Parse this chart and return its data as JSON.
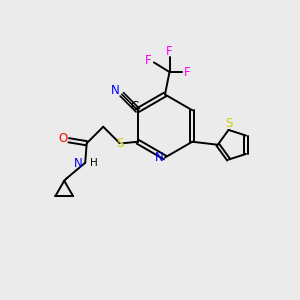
{
  "bg_color": "#ebebeb",
  "atom_colors": {
    "N": "#0000ff",
    "S": "#cccc00",
    "O": "#ff0000",
    "F": "#ff00ff",
    "C": "#000000"
  }
}
